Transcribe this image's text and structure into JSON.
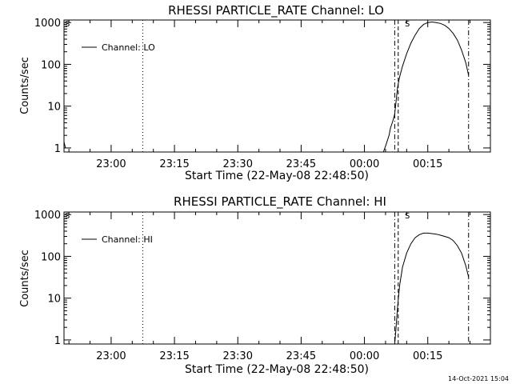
{
  "footer_timestamp": "14-Oct-2021 15:04",
  "chart_data": [
    {
      "type": "line",
      "title": "RHESSI PARTICLE_RATE Channel: LO",
      "xlabel": "Start Time (22-May-08 22:48:50)",
      "ylabel": "Counts/sec",
      "y_scale": "log",
      "ylim": [
        0.8,
        1150
      ],
      "xlim": [
        "22:48:50",
        "00:29:50"
      ],
      "x_ticks": [
        "23:00",
        "23:15",
        "23:30",
        "23:45",
        "00:00",
        "00:15"
      ],
      "y_ticks": [
        "1",
        "10",
        "100",
        "1000"
      ],
      "legend": "top-left",
      "grid": false,
      "vertical_markers": [
        {
          "time": "23:07:30",
          "style": "dotted"
        },
        {
          "time": "00:07:10",
          "style": "dash-dot"
        },
        {
          "time": "00:08:00",
          "style": "dashed"
        },
        {
          "time": "00:24:40",
          "style": "dash-dot"
        }
      ],
      "corner_symbol": "S",
      "flare_symbol": "S",
      "series": [
        {
          "name": "Channel: LO",
          "points": [
            [
              "22:48:50",
              1.4
            ],
            [
              "22:49:10",
              1.0
            ],
            [
              "00:04:30",
              0.8
            ],
            [
              "00:04:50",
              1.0
            ],
            [
              "00:05:20",
              1.4
            ],
            [
              "00:05:50",
              2.0
            ],
            [
              "00:06:10",
              3.0
            ],
            [
              "00:06:40",
              4.2
            ],
            [
              "00:07:10",
              6.5
            ],
            [
              "00:07:30",
              13
            ],
            [
              "00:07:50",
              28
            ],
            [
              "00:08:20",
              50
            ],
            [
              "00:09:00",
              90
            ],
            [
              "00:10:00",
              180
            ],
            [
              "00:11:00",
              320
            ],
            [
              "00:12:00",
              500
            ],
            [
              "00:13:00",
              720
            ],
            [
              "00:14:00",
              900
            ],
            [
              "00:15:00",
              1000
            ],
            [
              "00:16:00",
              1030
            ],
            [
              "00:17:00",
              1000
            ],
            [
              "00:18:00",
              950
            ],
            [
              "00:19:00",
              860
            ],
            [
              "00:20:00",
              720
            ],
            [
              "00:21:00",
              550
            ],
            [
              "00:22:00",
              380
            ],
            [
              "00:23:00",
              220
            ],
            [
              "00:24:00",
              110
            ],
            [
              "00:24:40",
              55
            ]
          ]
        }
      ]
    },
    {
      "type": "line",
      "title": "RHESSI PARTICLE_RATE Channel: HI",
      "xlabel": "Start Time (22-May-08 22:48:50)",
      "ylabel": "Counts/sec",
      "y_scale": "log",
      "ylim": [
        0.8,
        1150
      ],
      "xlim": [
        "22:48:50",
        "00:29:50"
      ],
      "x_ticks": [
        "23:00",
        "23:15",
        "23:30",
        "23:45",
        "00:00",
        "00:15"
      ],
      "y_ticks": [
        "1",
        "10",
        "100",
        "1000"
      ],
      "legend": "top-left",
      "grid": false,
      "vertical_markers": [
        {
          "time": "23:07:30",
          "style": "dotted"
        },
        {
          "time": "00:07:10",
          "style": "dash-dot"
        },
        {
          "time": "00:08:00",
          "style": "dashed"
        },
        {
          "time": "00:24:40",
          "style": "dash-dot"
        }
      ],
      "corner_symbol": "S",
      "flare_symbol": "S",
      "series": [
        {
          "name": "Channel: HI",
          "points": [
            [
              "00:07:10",
              0.8
            ],
            [
              "00:07:30",
              2.0
            ],
            [
              "00:07:50",
              6.0
            ],
            [
              "00:08:20",
              20
            ],
            [
              "00:09:00",
              55
            ],
            [
              "00:10:00",
              120
            ],
            [
              "00:11:00",
              200
            ],
            [
              "00:12:00",
              280
            ],
            [
              "00:13:00",
              330
            ],
            [
              "00:14:00",
              360
            ],
            [
              "00:15:00",
              360
            ],
            [
              "00:16:00",
              350
            ],
            [
              "00:17:00",
              340
            ],
            [
              "00:18:00",
              320
            ],
            [
              "00:19:00",
              300
            ],
            [
              "00:20:00",
              280
            ],
            [
              "00:21:00",
              240
            ],
            [
              "00:22:00",
              180
            ],
            [
              "00:23:00",
              120
            ],
            [
              "00:24:00",
              60
            ],
            [
              "00:24:40",
              32
            ]
          ]
        }
      ]
    }
  ]
}
